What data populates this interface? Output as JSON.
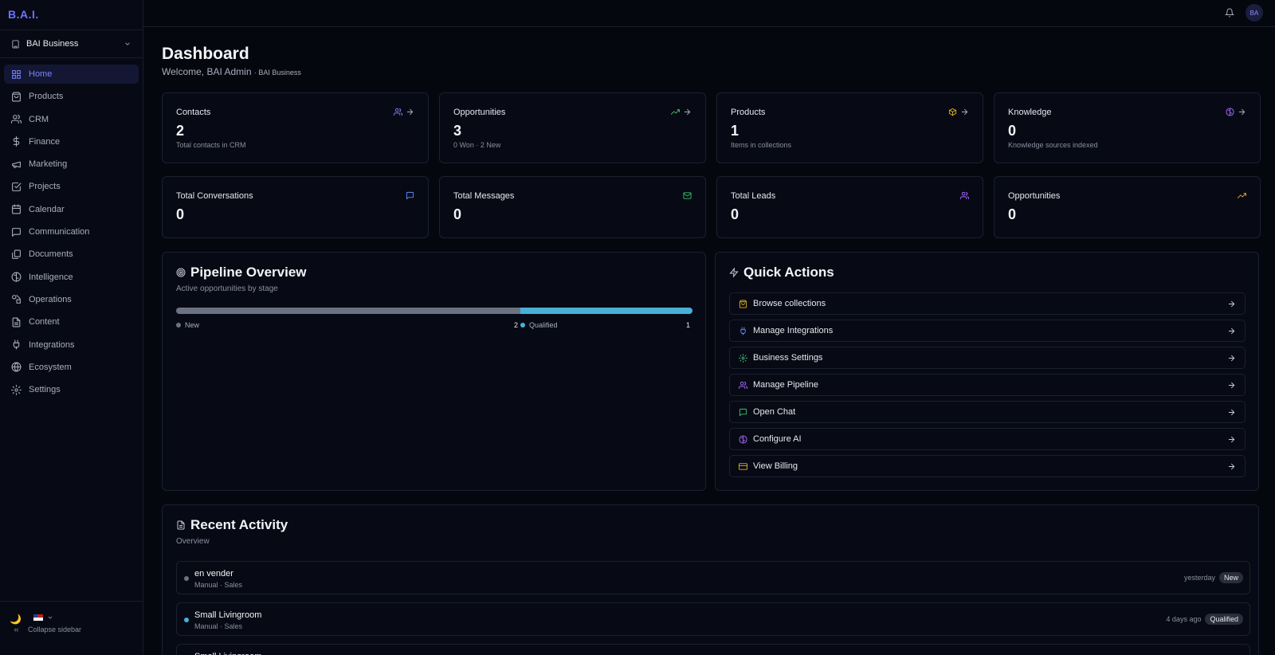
{
  "brand": "B.A.I.",
  "business_selector": {
    "label": "BAI Business"
  },
  "sidebar": {
    "items": [
      {
        "label": "Home",
        "icon": "grid-icon",
        "active": true
      },
      {
        "label": "Products",
        "icon": "shopping-bag-icon"
      },
      {
        "label": "CRM",
        "icon": "users-icon"
      },
      {
        "label": "Finance",
        "icon": "dollar-icon"
      },
      {
        "label": "Marketing",
        "icon": "megaphone-icon"
      },
      {
        "label": "Projects",
        "icon": "checkbox-icon"
      },
      {
        "label": "Calendar",
        "icon": "calendar-icon"
      },
      {
        "label": "Communication",
        "icon": "chat-icon"
      },
      {
        "label": "Documents",
        "icon": "files-icon"
      },
      {
        "label": "Intelligence",
        "icon": "brain-icon"
      },
      {
        "label": "Operations",
        "icon": "shapes-icon"
      },
      {
        "label": "Content",
        "icon": "document-icon"
      },
      {
        "label": "Integrations",
        "icon": "plug-icon"
      },
      {
        "label": "Ecosystem",
        "icon": "globe-icon"
      },
      {
        "label": "Settings",
        "icon": "gear-icon"
      }
    ],
    "collapse_label": "Collapse sidebar"
  },
  "topbar": {
    "avatar_initials": "BA"
  },
  "header": {
    "title": "Dashboard",
    "welcome": "Welcome, BAI Admin",
    "welcome_sub": "· BAI Business"
  },
  "stats_top": [
    {
      "title": "Contacts",
      "value": "2",
      "desc": "Total contacts in CRM",
      "icon": "users-icon",
      "color": "#7b82ff"
    },
    {
      "title": "Opportunities",
      "value": "3",
      "desc": "0 Won · 2 New",
      "icon": "trending-up-icon",
      "color": "#3fbf6f"
    },
    {
      "title": "Products",
      "value": "1",
      "desc": "Items in collections",
      "icon": "box-icon",
      "color": "#e0b020"
    },
    {
      "title": "Knowledge",
      "value": "0",
      "desc": "Knowledge sources indexed",
      "icon": "brain-icon",
      "color": "#a86bff"
    }
  ],
  "stats_bottom": [
    {
      "title": "Total Conversations",
      "value": "0",
      "icon": "chat-icon",
      "color": "#5f8dff"
    },
    {
      "title": "Total Messages",
      "value": "0",
      "icon": "mail-icon",
      "color": "#3fbf6f"
    },
    {
      "title": "Total Leads",
      "value": "0",
      "icon": "users-icon",
      "color": "#a86bff"
    },
    {
      "title": "Opportunities",
      "value": "0",
      "icon": "trending-up-icon",
      "color": "#f0a030"
    }
  ],
  "pipeline": {
    "title": "Pipeline Overview",
    "subtitle": "Active opportunities by stage",
    "stages": [
      {
        "name": "New",
        "count": 2,
        "count_label": "2",
        "color": "#6b7283"
      },
      {
        "name": "Qualified",
        "count": 1,
        "count_label": "1",
        "color": "#48b0d8"
      }
    ]
  },
  "quick_actions": {
    "title": "Quick Actions",
    "items": [
      {
        "label": "Browse collections",
        "icon": "shopping-bag-icon",
        "color": "#e0b020"
      },
      {
        "label": "Manage Integrations",
        "icon": "plug-icon",
        "color": "#5f8dff"
      },
      {
        "label": "Business Settings",
        "icon": "gear-icon",
        "color": "#3fbf6f"
      },
      {
        "label": "Manage Pipeline",
        "icon": "users-icon",
        "color": "#a86bff"
      },
      {
        "label": "Open Chat",
        "icon": "chat-icon",
        "color": "#3fbf6f"
      },
      {
        "label": "Configure AI",
        "icon": "brain-icon",
        "color": "#a86bff"
      },
      {
        "label": "View Billing",
        "icon": "credit-card-icon",
        "color": "#e0b020"
      }
    ]
  },
  "recent_activity": {
    "title": "Recent Activity",
    "subtitle": "Overview",
    "items": [
      {
        "name": "en vender",
        "meta": "Manual · Sales",
        "time": "yesterday",
        "badge": "New",
        "dot_color": "#6b7283"
      },
      {
        "name": "Small Livingroom",
        "meta": "Manual · Sales",
        "time": "4 days ago",
        "badge": "Qualified",
        "dot_color": "#48b0d8"
      },
      {
        "name": "Small Livingroom",
        "meta": "",
        "time": "",
        "badge": "",
        "dot_color": "#6b7283"
      }
    ]
  }
}
